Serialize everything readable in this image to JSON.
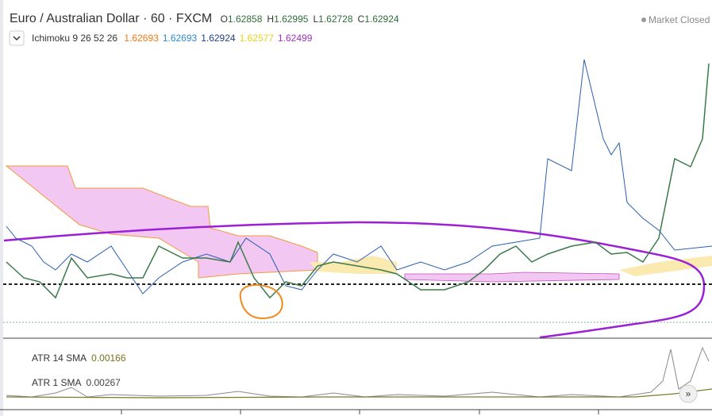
{
  "header": {
    "symbol": "Euro / Australian Dollar · 60 · FXCM",
    "ohlc": [
      {
        "prefix": "O",
        "value": 1.62858
      },
      {
        "prefix": "H",
        "value": 1.62995
      },
      {
        "prefix": "L",
        "value": 1.62728
      },
      {
        "prefix": "C",
        "value": 1.62924
      }
    ],
    "status": "Market Closed"
  },
  "indicators": {
    "ichimoku": {
      "name": "Ichimoku 9 26 52 26",
      "values": [
        1.62693,
        1.62693,
        1.62924,
        1.62577,
        1.62499
      ]
    },
    "atr": [
      {
        "name": "ATR 14 SMA",
        "value": 0.00166
      },
      {
        "name": "ATR 1 SMA",
        "value": 0.00267
      }
    ]
  }
}
